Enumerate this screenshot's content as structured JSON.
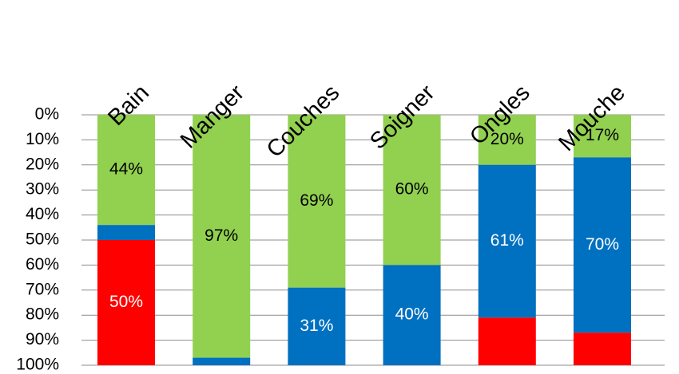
{
  "chart_data": {
    "type": "bar",
    "stacked": true,
    "orientation": "vertical",
    "y_axis_reversed": true,
    "categories": [
      "Bain",
      "Manger",
      "Couches",
      "Soigner",
      "Ongles",
      "Mouche"
    ],
    "series": [
      {
        "color": "#92d050",
        "values": [
          44,
          97,
          69,
          60,
          20,
          17
        ],
        "labels": [
          "44%",
          "97%",
          "69%",
          "60%",
          "20%",
          "17%"
        ]
      },
      {
        "color": "#0070c0",
        "values": [
          6,
          3,
          31,
          40,
          61,
          70
        ],
        "labels": [
          "",
          "",
          "31%",
          "40%",
          "61%",
          "70%"
        ]
      },
      {
        "color": "#ff0000",
        "values": [
          50,
          0,
          0,
          0,
          19,
          13
        ],
        "labels": [
          "50%",
          "",
          "",
          "",
          "",
          ""
        ]
      }
    ],
    "y_ticks": [
      "0%",
      "10%",
      "20%",
      "30%",
      "40%",
      "50%",
      "60%",
      "70%",
      "80%",
      "90%",
      "100%"
    ],
    "ylim": [
      0,
      100
    ],
    "grid": true,
    "legend": "none",
    "title": "",
    "xlabel": "",
    "ylabel": ""
  }
}
